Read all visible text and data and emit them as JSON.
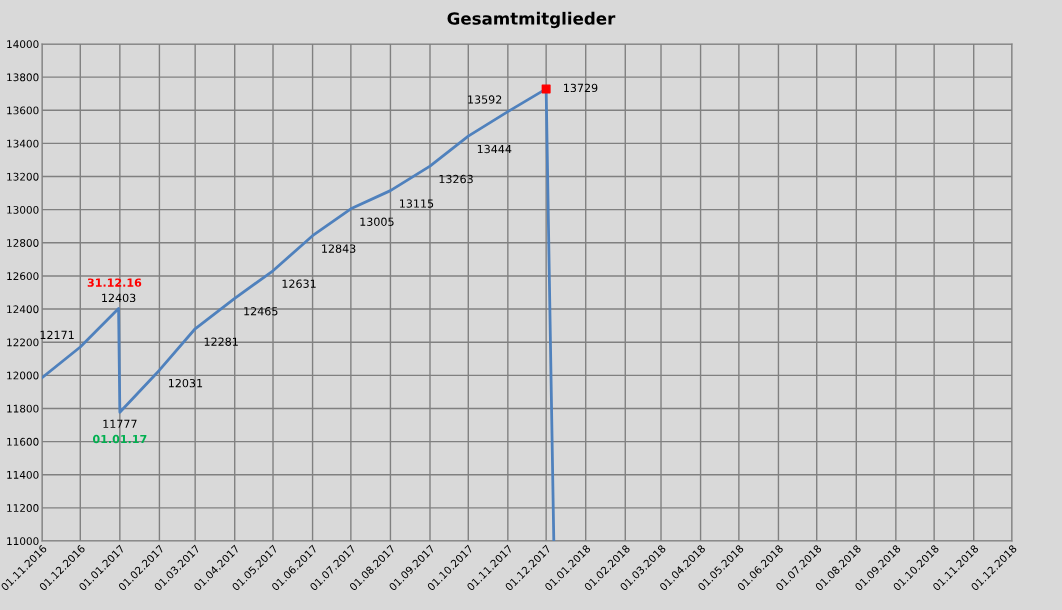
{
  "chart_data": {
    "type": "line",
    "title": "Gesamtmitglieder",
    "x": [
      "2016-11-01",
      "2016-12-01",
      "2016-12-31",
      "2017-01-01",
      "2017-02-01",
      "2017-03-01",
      "2017-04-01",
      "2017-05-01",
      "2017-06-01",
      "2017-07-01",
      "2017-08-01",
      "2017-09-01",
      "2017-10-01",
      "2017-11-01",
      "2017-12-01",
      "2017-12-07"
    ],
    "series": [
      {
        "color": "#4f81bd",
        "marker": "none",
        "values": [
          11985,
          12171,
          12403,
          11777,
          12031,
          12281,
          12465,
          12631,
          12843,
          13005,
          13115,
          13263,
          13444,
          13592,
          13729,
          11000
        ],
        "value_labels": [
          null,
          "12171",
          "12403",
          "11777",
          "12031",
          "12281",
          "12465",
          "12631",
          "12843",
          "13005",
          "13115",
          "13263",
          "13444",
          "13592",
          "13729",
          null
        ]
      },
      {
        "type": "scatter",
        "color": "#ff0000",
        "marker": "square",
        "x": [
          "2017-12-01"
        ],
        "values": [
          13729
        ]
      }
    ],
    "annotations": [
      {
        "text": "31.12.16",
        "x": "2016-12-31",
        "y": 12403
      },
      {
        "text": "01.01.17",
        "x": "2017-01-01",
        "y": 11777
      }
    ],
    "xlim": [
      "2016-11-01",
      "2018-12-01"
    ],
    "xticks": [
      {
        "value": "2016-11-01",
        "label": "01.11.2016"
      },
      {
        "value": "2016-12-01",
        "label": "01.12.2016"
      },
      {
        "value": "2017-01-01",
        "label": "01.01.2017"
      },
      {
        "value": "2017-02-01",
        "label": "01.02.2017"
      },
      {
        "value": "2017-03-01",
        "label": "01.03.2017"
      },
      {
        "value": "2017-04-01",
        "label": "01.04.2017"
      },
      {
        "value": "2017-05-01",
        "label": "01.05.2017"
      },
      {
        "value": "2017-06-01",
        "label": "01.06.2017"
      },
      {
        "value": "2017-07-01",
        "label": "01.07.2017"
      },
      {
        "value": "2017-08-01",
        "label": "01.08.2017"
      },
      {
        "value": "2017-09-01",
        "label": "01.09.2017"
      },
      {
        "value": "2017-10-01",
        "label": "01.10.2017"
      },
      {
        "value": "2017-11-01",
        "label": "01.11.2017"
      },
      {
        "value": "2017-12-01",
        "label": "01.12.2017"
      },
      {
        "value": "2018-01-01",
        "label": "01.01.2018"
      },
      {
        "value": "2018-02-01",
        "label": "01.02.2018"
      },
      {
        "value": "2018-03-01",
        "label": "01.03.2018"
      },
      {
        "value": "2018-04-01",
        "label": "01.04.2018"
      },
      {
        "value": "2018-05-01",
        "label": "01.05.2018"
      },
      {
        "value": "2018-06-01",
        "label": "01.06.2018"
      },
      {
        "value": "2018-07-01",
        "label": "01.07.2018"
      },
      {
        "value": "2018-08-01",
        "label": "01.08.2018"
      },
      {
        "value": "2018-09-01",
        "label": "01.09.2018"
      },
      {
        "value": "2018-10-01",
        "label": "01.10.2018"
      },
      {
        "value": "2018-11-01",
        "label": "01.11.2018"
      },
      {
        "value": "2018-12-01",
        "label": "01.12.2018"
      }
    ],
    "ylim": [
      11000,
      14000
    ],
    "yticks": [
      11000,
      11200,
      11400,
      11600,
      11800,
      12000,
      12200,
      12400,
      12600,
      12800,
      13000,
      13200,
      13400,
      13600,
      13800,
      14000
    ],
    "grid": true,
    "legend": false
  }
}
